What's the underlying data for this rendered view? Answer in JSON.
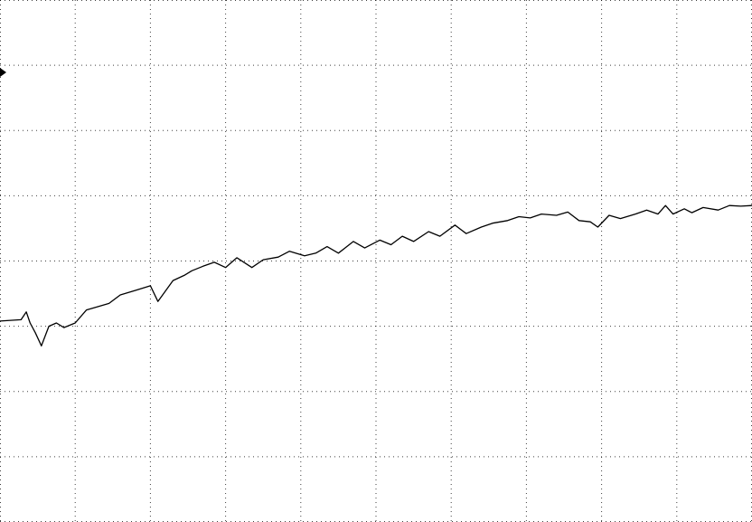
{
  "chart_data": {
    "type": "line",
    "grid": true,
    "grid_divisions": {
      "x": 10,
      "y": 8
    },
    "xlim": [
      0,
      10
    ],
    "ylim": [
      -4,
      4
    ],
    "series": [
      {
        "x": [
          0,
          0.28,
          0.35,
          0.4,
          0.47,
          0.55,
          0.65,
          0.75,
          0.85,
          1.0,
          1.15,
          1.3,
          1.45,
          1.6,
          1.8,
          2.0,
          2.1,
          2.3,
          2.45,
          2.55,
          2.7,
          2.85,
          3.0,
          3.15,
          3.35,
          3.5,
          3.7,
          3.85,
          4.05,
          4.2,
          4.35,
          4.5,
          4.7,
          4.85,
          5.05,
          5.2,
          5.35,
          5.5,
          5.7,
          5.85,
          6.05,
          6.2,
          6.4,
          6.55,
          6.75,
          6.9,
          7.05,
          7.2,
          7.4,
          7.55,
          7.7,
          7.85,
          7.95,
          8.1,
          8.25,
          8.45,
          8.6,
          8.75,
          8.85,
          8.95,
          9.1,
          9.2,
          9.35,
          9.55,
          9.7,
          9.85,
          10.0
        ],
        "y": [
          -0.92,
          -0.9,
          -0.78,
          -0.95,
          -1.1,
          -1.3,
          -1.0,
          -0.95,
          -1.02,
          -0.95,
          -0.75,
          -0.7,
          -0.65,
          -0.52,
          -0.45,
          -0.38,
          -0.62,
          -0.3,
          -0.22,
          -0.15,
          -0.08,
          -0.02,
          -0.1,
          0.05,
          -0.1,
          0.02,
          0.06,
          0.15,
          0.08,
          0.12,
          0.22,
          0.12,
          0.3,
          0.2,
          0.32,
          0.25,
          0.38,
          0.3,
          0.45,
          0.38,
          0.55,
          0.42,
          0.52,
          0.58,
          0.62,
          0.68,
          0.66,
          0.72,
          0.7,
          0.75,
          0.62,
          0.6,
          0.52,
          0.7,
          0.65,
          0.72,
          0.78,
          0.72,
          0.85,
          0.72,
          0.8,
          0.74,
          0.82,
          0.78,
          0.85,
          0.84,
          0.85
        ]
      }
    ]
  }
}
